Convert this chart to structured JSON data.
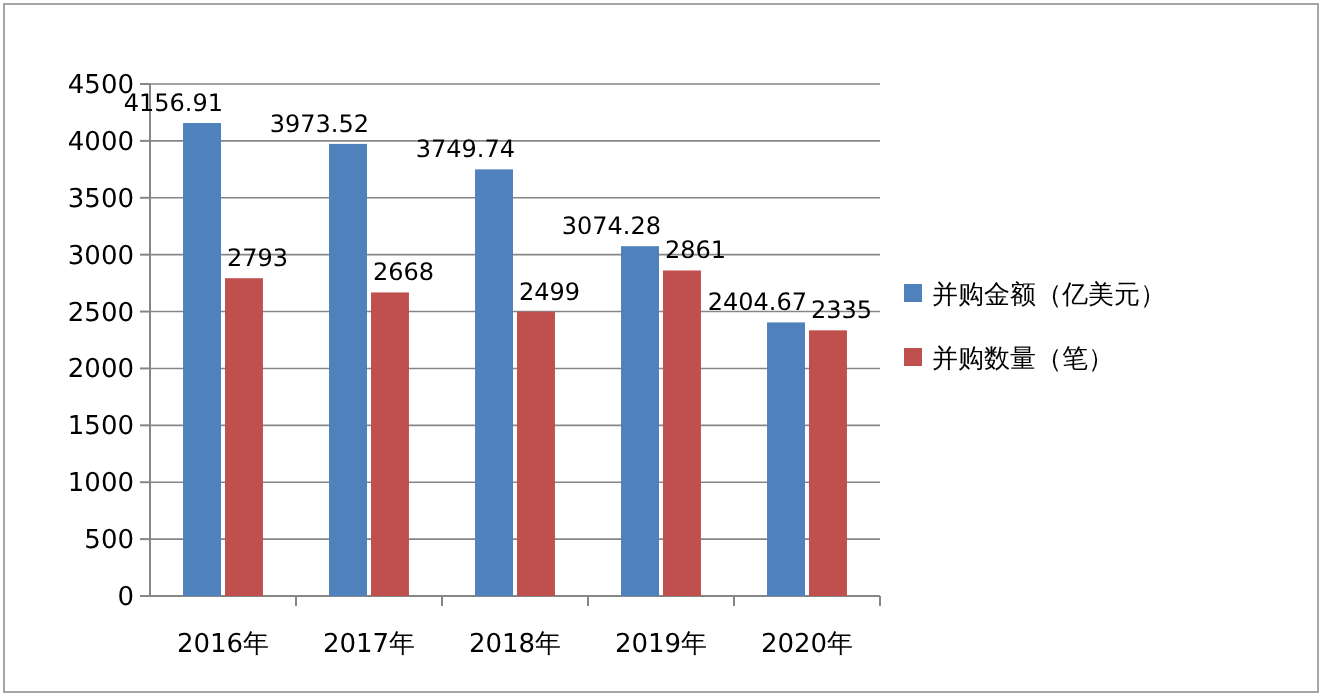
{
  "chart_data": {
    "type": "bar",
    "categories": [
      "2016年",
      "2017年",
      "2018年",
      "2019年",
      "2020年"
    ],
    "series": [
      {
        "name": "并购金额（亿美元）",
        "color": "#4f81bd",
        "values": [
          4156.91,
          3973.52,
          3749.74,
          3074.28,
          2404.67
        ]
      },
      {
        "name": "并购数量（笔）",
        "color": "#c0504d",
        "values": [
          2793,
          2668,
          2499,
          2861,
          2335
        ]
      }
    ],
    "ylim": [
      0,
      4500
    ],
    "yticks": [
      0,
      500,
      1000,
      1500,
      2000,
      2500,
      3000,
      3500,
      4000,
      4500
    ],
    "grid": "y",
    "legend": "right",
    "data_labels": true
  }
}
